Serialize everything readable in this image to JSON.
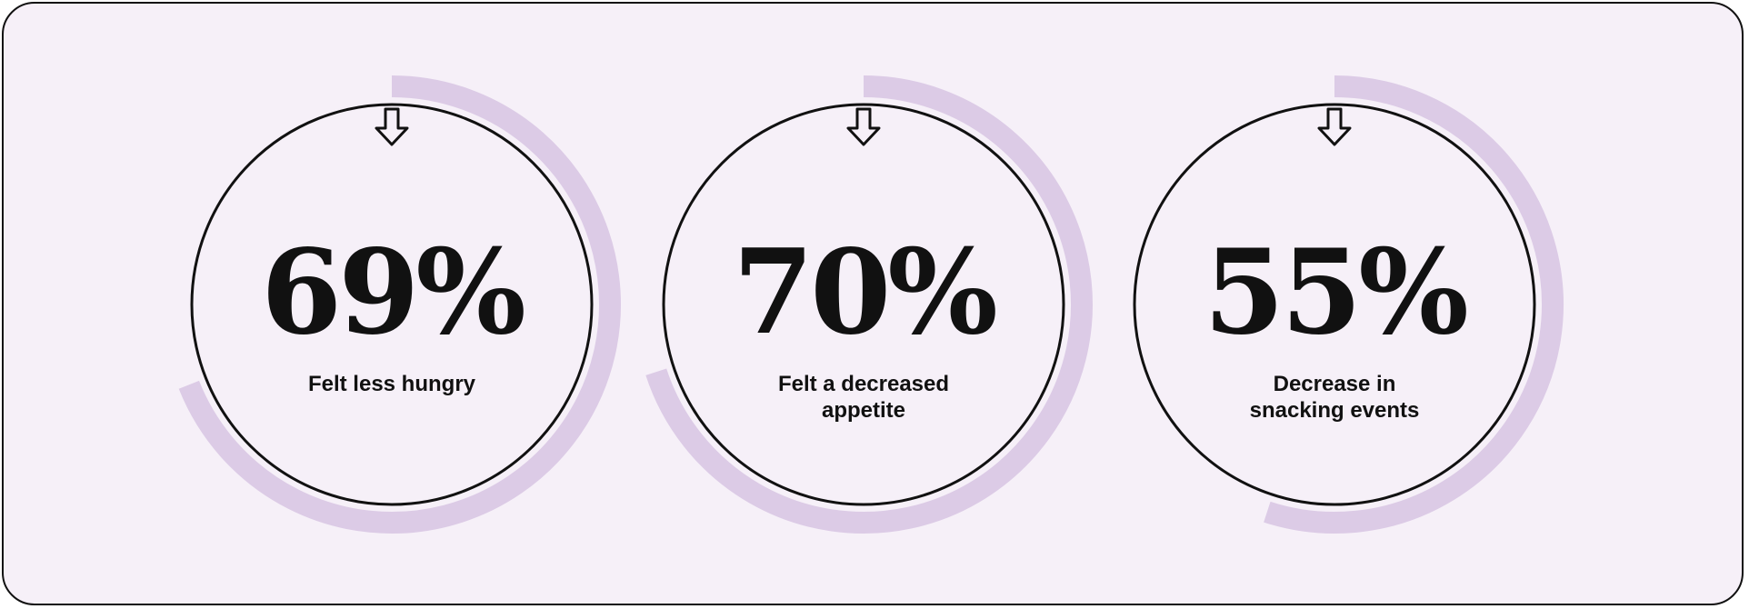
{
  "chart_data": {
    "type": "radial-progress",
    "max": 100,
    "items": [
      {
        "value": 69,
        "display": "69%",
        "label": "Felt less hungry",
        "icon": "down-arrow-icon"
      },
      {
        "value": 70,
        "display": "70%",
        "label": "Felt a decreased appetite",
        "icon": "down-arrow-icon"
      },
      {
        "value": 55,
        "display": "55%",
        "label": "Decrease in snacking events",
        "icon": "down-arrow-icon"
      }
    ]
  },
  "colors": {
    "background": "#f6f0f8",
    "arc": "#dccbe6",
    "stroke": "#111111"
  }
}
